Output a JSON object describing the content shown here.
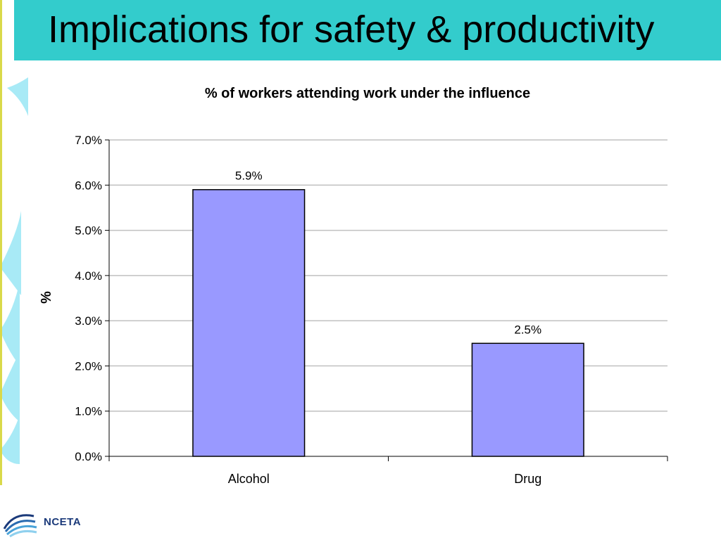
{
  "slide": {
    "title": "Implications for safety & productivity",
    "title_bar_color": "#33cccc",
    "accent_color": "#a8eaf6"
  },
  "logo": {
    "text": "NCETA",
    "color": "#1b3a7a"
  },
  "chart_data": {
    "type": "bar",
    "title": "% of workers attending work under the influence",
    "xlabel": "",
    "ylabel": "%",
    "categories": [
      "Alcohol",
      "Drug"
    ],
    "values": [
      5.9,
      2.5
    ],
    "value_labels": [
      "5.9%",
      "2.5%"
    ],
    "ylim": [
      0,
      7
    ],
    "yticks": [
      0,
      1,
      2,
      3,
      4,
      5,
      6,
      7
    ],
    "ytick_labels": [
      "0.0%",
      "1.0%",
      "2.0%",
      "3.0%",
      "4.0%",
      "5.0%",
      "6.0%",
      "7.0%"
    ],
    "grid": true,
    "legend": "none",
    "bar_color": "#9999ff",
    "bar_edge_color": "#000000",
    "grid_color": "#c0c0c0"
  }
}
